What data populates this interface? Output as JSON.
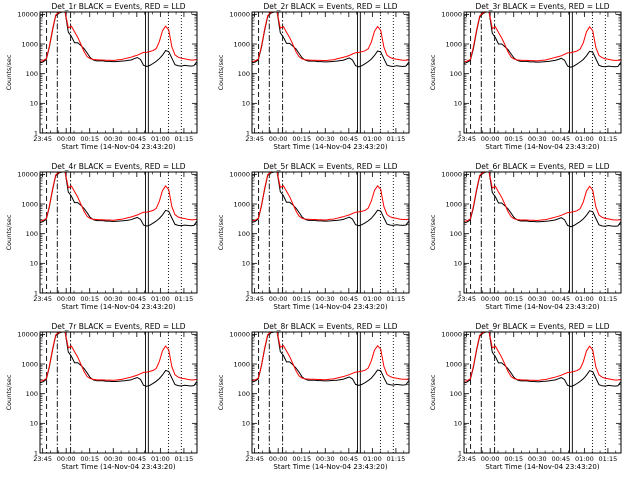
{
  "chart_data": {
    "type": "line",
    "layout": {
      "rows": 3,
      "cols": 3
    },
    "x_axis": {
      "label": "Start Time (14-Nov-04 23:43:20)",
      "tick_labels": [
        "23:45",
        "00:00",
        "00:15",
        "00:30",
        "00:45",
        "01:00",
        "01:15"
      ],
      "tick_values_min": [
        1.67,
        16.67,
        31.67,
        46.67,
        61.67,
        76.67,
        91.67
      ],
      "xlim_min": [
        0,
        100
      ]
    },
    "y_axis": {
      "label": "Counts/sec",
      "scale": "log",
      "ylim": [
        1,
        12000
      ],
      "tick_labels": [
        "1",
        "10",
        "100",
        "1000",
        "10000"
      ]
    },
    "series_colors": {
      "events": "#000000",
      "lld": "#ff0000"
    },
    "reference_lines_min": {
      "dashed": [
        4.2
      ],
      "dashdot": [
        11.0,
        19.5
      ],
      "solid": [
        67.2,
        69.0
      ],
      "dotted": [
        81.8,
        90.0
      ]
    },
    "x_min": [
      0,
      2,
      4,
      6,
      8,
      10,
      12,
      14,
      16,
      18,
      20,
      22,
      24,
      26,
      28,
      30,
      32,
      34,
      36,
      38,
      40,
      42,
      44,
      46,
      48,
      50,
      52,
      54,
      56,
      58,
      60,
      62,
      64,
      66,
      68,
      70,
      72,
      74,
      76,
      78,
      80,
      82,
      84,
      86,
      88,
      90,
      92,
      94,
      96,
      98,
      100
    ],
    "panels": [
      {
        "title": "Det_1r BLACK = Events, RED = LLD",
        "events": [
          230,
          250,
          300,
          800,
          3000,
          9000,
          11000,
          12000,
          12000,
          2500,
          1800,
          1100,
          1100,
          900,
          700,
          500,
          350,
          290,
          270,
          270,
          270,
          260,
          260,
          255,
          255,
          260,
          265,
          270,
          280,
          290,
          320,
          350,
          300,
          190,
          175,
          190,
          220,
          260,
          320,
          420,
          600,
          560,
          330,
          200,
          185,
          180,
          190,
          185,
          180,
          185,
          260
        ],
        "lld": [
          260,
          275,
          320,
          850,
          3200,
          9500,
          11500,
          12000,
          12000,
          3500,
          4000,
          2600,
          1700,
          1000,
          560,
          380,
          320,
          300,
          295,
          290,
          290,
          285,
          285,
          280,
          285,
          295,
          300,
          320,
          340,
          360,
          390,
          420,
          470,
          520,
          530,
          560,
          600,
          700,
          1200,
          2800,
          4000,
          3000,
          800,
          430,
          360,
          330,
          320,
          300,
          290,
          290,
          300
        ]
      },
      {
        "title": "Det_2r BLACK = Events, RED = LLD",
        "events": [
          230,
          245,
          290,
          750,
          2800,
          8500,
          11000,
          12000,
          12000,
          2400,
          1700,
          1050,
          1050,
          850,
          680,
          480,
          340,
          285,
          265,
          265,
          265,
          255,
          255,
          250,
          250,
          255,
          260,
          265,
          275,
          285,
          310,
          340,
          290,
          185,
          170,
          185,
          215,
          255,
          310,
          410,
          580,
          540,
          320,
          195,
          180,
          175,
          185,
          180,
          175,
          180,
          250
        ],
        "lld": [
          255,
          270,
          310,
          820,
          3100,
          9000,
          11500,
          12000,
          12000,
          3400,
          3900,
          2500,
          1650,
          980,
          550,
          370,
          315,
          295,
          290,
          285,
          285,
          280,
          280,
          275,
          280,
          290,
          295,
          315,
          335,
          355,
          380,
          410,
          460,
          510,
          520,
          550,
          590,
          690,
          1150,
          2700,
          3900,
          2900,
          780,
          420,
          350,
          320,
          310,
          295,
          285,
          285,
          295
        ]
      },
      {
        "title": "Det_3r BLACK = Events, RED = LLD",
        "events": [
          220,
          240,
          280,
          700,
          2700,
          8200,
          10500,
          12000,
          12000,
          2300,
          1650,
          1000,
          1000,
          820,
          650,
          460,
          330,
          280,
          260,
          260,
          260,
          250,
          250,
          245,
          245,
          250,
          255,
          260,
          270,
          280,
          300,
          330,
          285,
          180,
          165,
          180,
          210,
          250,
          300,
          400,
          570,
          530,
          315,
          190,
          175,
          170,
          180,
          175,
          170,
          175,
          245
        ],
        "lld": [
          250,
          265,
          300,
          800,
          3000,
          8800,
          11200,
          12000,
          12000,
          3300,
          3800,
          2450,
          1600,
          960,
          540,
          365,
          310,
          290,
          285,
          280,
          280,
          275,
          275,
          270,
          275,
          285,
          290,
          310,
          330,
          350,
          375,
          400,
          450,
          500,
          510,
          540,
          580,
          680,
          1100,
          2600,
          3800,
          2800,
          760,
          410,
          345,
          315,
          305,
          290,
          280,
          280,
          290
        ]
      },
      {
        "title": "Det_4r BLACK = Events, RED = LLD",
        "events": [
          235,
          255,
          305,
          820,
          3050,
          9100,
          11100,
          12000,
          12000,
          2550,
          1850,
          1120,
          1120,
          910,
          710,
          510,
          355,
          295,
          275,
          275,
          275,
          265,
          265,
          260,
          260,
          265,
          270,
          275,
          285,
          295,
          325,
          355,
          305,
          195,
          180,
          195,
          225,
          265,
          325,
          430,
          610,
          570,
          335,
          205,
          190,
          185,
          195,
          190,
          185,
          190,
          265
        ],
        "lld": [
          265,
          280,
          325,
          860,
          3250,
          9600,
          11600,
          12000,
          12000,
          3550,
          4050,
          2650,
          1720,
          1010,
          570,
          385,
          325,
          305,
          300,
          295,
          295,
          290,
          290,
          285,
          290,
          300,
          305,
          325,
          345,
          365,
          395,
          425,
          475,
          525,
          535,
          565,
          605,
          710,
          1220,
          2850,
          4050,
          3050,
          810,
          435,
          365,
          335,
          325,
          305,
          295,
          295,
          305
        ]
      },
      {
        "title": "Det_5r BLACK = Events, RED = LLD",
        "events": [
          240,
          260,
          310,
          840,
          3100,
          9200,
          11200,
          12000,
          12000,
          2600,
          1900,
          1150,
          1150,
          930,
          720,
          520,
          360,
          300,
          280,
          280,
          280,
          270,
          270,
          265,
          265,
          270,
          275,
          280,
          290,
          300,
          330,
          360,
          310,
          200,
          185,
          200,
          230,
          270,
          330,
          440,
          620,
          580,
          340,
          210,
          195,
          190,
          200,
          195,
          190,
          195,
          270
        ],
        "lld": [
          270,
          285,
          330,
          870,
          3300,
          9700,
          11700,
          12000,
          12000,
          3600,
          4100,
          2700,
          1750,
          1020,
          580,
          390,
          330,
          310,
          305,
          300,
          300,
          295,
          295,
          290,
          295,
          305,
          310,
          330,
          350,
          370,
          400,
          430,
          480,
          530,
          540,
          570,
          610,
          720,
          1250,
          2900,
          4100,
          3100,
          820,
          440,
          370,
          340,
          330,
          310,
          300,
          300,
          310
        ]
      },
      {
        "title": "Det_6r BLACK = Events, RED = LLD",
        "events": [
          225,
          245,
          290,
          760,
          2850,
          8600,
          10800,
          12000,
          12000,
          2450,
          1750,
          1080,
          1080,
          880,
          690,
          490,
          345,
          288,
          268,
          268,
          268,
          258,
          258,
          252,
          252,
          258,
          262,
          268,
          278,
          288,
          315,
          345,
          295,
          188,
          172,
          188,
          218,
          258,
          315,
          415,
          590,
          550,
          325,
          198,
          182,
          178,
          188,
          182,
          178,
          182,
          255
        ],
        "lld": [
          258,
          272,
          315,
          830,
          3150,
          9200,
          11400,
          12000,
          12000,
          3450,
          3950,
          2550,
          1680,
          990,
          555,
          375,
          318,
          298,
          292,
          288,
          288,
          282,
          282,
          278,
          282,
          292,
          298,
          318,
          338,
          358,
          385,
          415,
          465,
          515,
          525,
          555,
          595,
          695,
          1180,
          2750,
          3950,
          2950,
          790,
          425,
          355,
          325,
          315,
          298,
          288,
          288,
          298
        ]
      },
      {
        "title": "Det_7r BLACK = Events, RED = LLD",
        "events": [
          232,
          252,
          302,
          810,
          3020,
          9050,
          11050,
          12000,
          12000,
          2520,
          1820,
          1110,
          1110,
          905,
          705,
          505,
          352,
          292,
          272,
          272,
          272,
          262,
          262,
          257,
          257,
          262,
          267,
          272,
          282,
          292,
          322,
          352,
          302,
          192,
          177,
          192,
          222,
          262,
          322,
          425,
          605,
          565,
          332,
          202,
          187,
          182,
          192,
          187,
          182,
          187,
          262
        ],
        "lld": [
          262,
          277,
          322,
          855,
          3220,
          9550,
          11550,
          12000,
          12000,
          3520,
          4020,
          2620,
          1710,
          1005,
          565,
          382,
          322,
          302,
          297,
          292,
          292,
          287,
          287,
          282,
          287,
          297,
          302,
          322,
          342,
          362,
          392,
          422,
          472,
          522,
          532,
          562,
          602,
          705,
          1210,
          2820,
          4020,
          3020,
          805,
          432,
          362,
          332,
          322,
          302,
          292,
          292,
          302
        ]
      },
      {
        "title": "Det_8r BLACK = Events, RED = LLD",
        "events": [
          245,
          265,
          315,
          860,
          3150,
          9300,
          11300,
          12000,
          12000,
          2650,
          1950,
          1180,
          1180,
          950,
          730,
          530,
          365,
          305,
          285,
          285,
          285,
          275,
          275,
          270,
          270,
          275,
          280,
          285,
          295,
          305,
          335,
          365,
          315,
          205,
          190,
          205,
          235,
          275,
          335,
          450,
          630,
          590,
          345,
          215,
          200,
          195,
          205,
          200,
          195,
          200,
          275
        ],
        "lld": [
          275,
          290,
          335,
          880,
          3350,
          9800,
          11800,
          12000,
          12000,
          3650,
          4150,
          2750,
          1780,
          1030,
          590,
          395,
          335,
          315,
          310,
          305,
          305,
          300,
          300,
          295,
          300,
          310,
          315,
          335,
          355,
          375,
          405,
          435,
          485,
          535,
          545,
          575,
          615,
          730,
          1280,
          2950,
          4150,
          3150,
          830,
          445,
          375,
          345,
          335,
          315,
          305,
          305,
          315
        ]
      },
      {
        "title": "Det_9r BLACK = Events, RED = LLD",
        "events": [
          228,
          248,
          295,
          780,
          2900,
          8700,
          10900,
          12000,
          12000,
          2480,
          1780,
          1090,
          1090,
          890,
          695,
          495,
          348,
          290,
          270,
          270,
          270,
          260,
          260,
          254,
          254,
          260,
          264,
          270,
          280,
          290,
          318,
          348,
          298,
          190,
          174,
          190,
          220,
          260,
          318,
          420,
          595,
          555,
          328,
          200,
          184,
          180,
          190,
          184,
          180,
          184,
          258
        ],
        "lld": [
          260,
          274,
          318,
          840,
          3180,
          9300,
          11450,
          12000,
          12000,
          3480,
          3980,
          2580,
          1690,
          995,
          560,
          378,
          320,
          300,
          294,
          290,
          290,
          284,
          284,
          280,
          284,
          294,
          300,
          320,
          340,
          360,
          388,
          418,
          468,
          518,
          528,
          558,
          598,
          700,
          1190,
          2780,
          3980,
          2980,
          795,
          428,
          358,
          328,
          318,
          300,
          290,
          290,
          300
        ]
      }
    ]
  }
}
